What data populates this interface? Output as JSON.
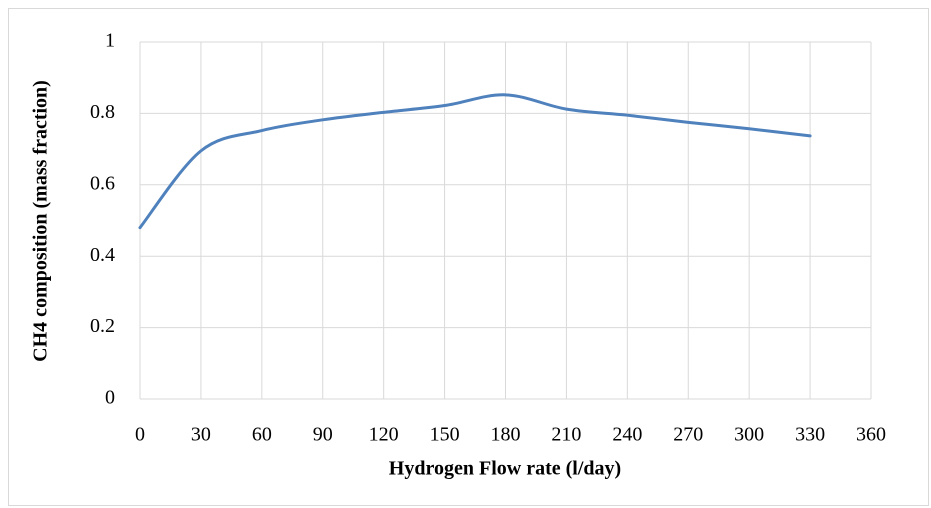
{
  "chart_data": {
    "type": "line",
    "x_label": "Hydrogen Flow rate (l/day)",
    "y_label": "CH4 composition (mass fraction)",
    "x": [
      0,
      30,
      60,
      90,
      120,
      150,
      180,
      210,
      240,
      270,
      300,
      330
    ],
    "series": [
      {
        "name": "CH4 composition",
        "color": "#4f81bd",
        "values": [
          0.48,
          0.695,
          0.752,
          0.782,
          0.803,
          0.822,
          0.852,
          0.812,
          0.795,
          0.775,
          0.757,
          0.737
        ]
      }
    ],
    "xlim": [
      0,
      360
    ],
    "xticks": [
      0,
      30,
      60,
      90,
      120,
      150,
      180,
      210,
      240,
      270,
      300,
      330,
      360
    ],
    "ylim": [
      0,
      1
    ],
    "yticks": [
      0,
      0.2,
      0.4,
      0.6,
      0.8,
      1
    ],
    "grid": true,
    "smooth": true
  }
}
